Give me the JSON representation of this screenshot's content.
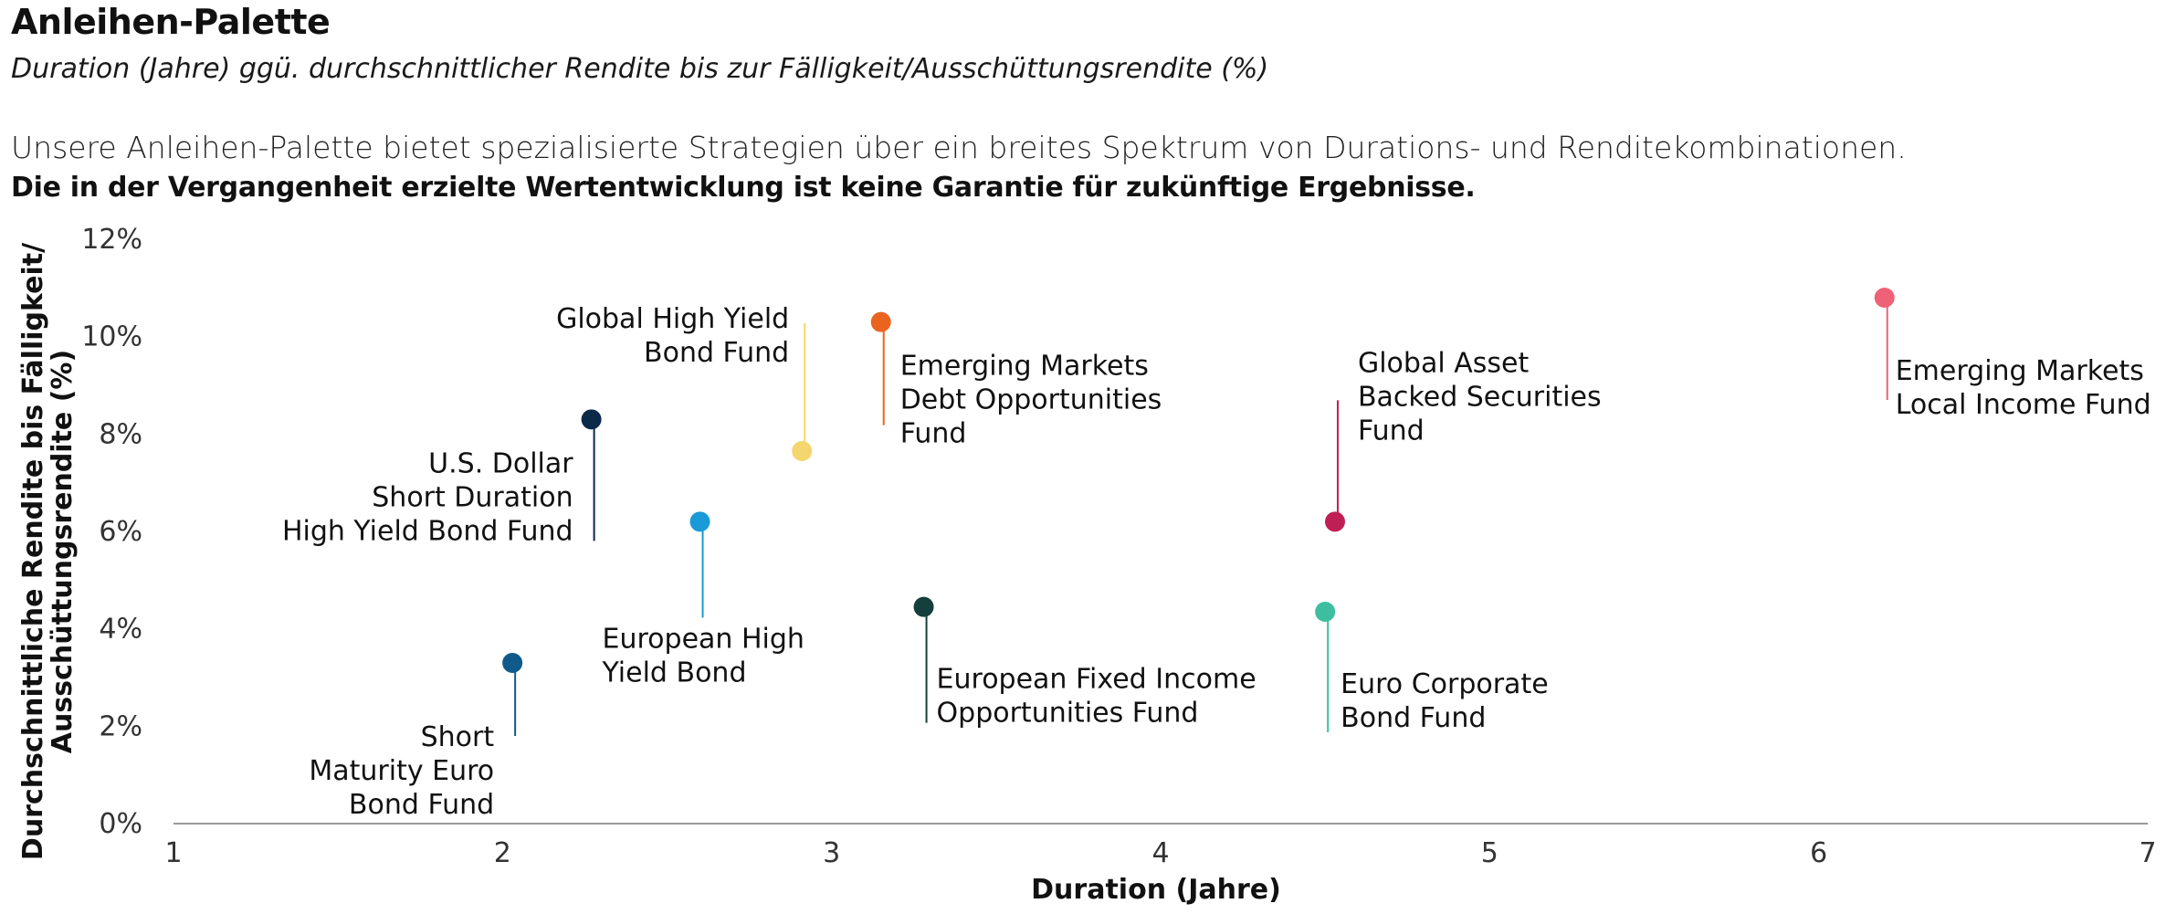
{
  "header": {
    "title": "Anleihen-Palette",
    "subtitle": "Duration (Jahre) ggü. durchschnittlicher Rendite bis zur Fälligkeit/Ausschüttungsrendite (%)",
    "intro": "Unsere Anleihen-Palette bietet spezialisierte Strategien über ein breites Spektrum von Durations- und Renditekombinationen.",
    "disclaimer": "Die in der Vergangenheit erzielte Wertentwicklung ist keine Garantie für zukünftige Ergebnisse."
  },
  "chart_data": {
    "type": "scatter",
    "xlabel": "Duration (Jahre)",
    "ylabel": [
      "Durchschnittliche Rendite bis Fälligkeit/",
      "Ausschüttungsrendite (%)"
    ],
    "xlim": [
      1,
      7
    ],
    "ylim": [
      0,
      12
    ],
    "xticks": [
      "1",
      "2",
      "3",
      "4",
      "5",
      "6",
      "7"
    ],
    "yticks": [
      "0%",
      "2%",
      "4%",
      "6%",
      "8%",
      "10%",
      "12%"
    ],
    "grid": false,
    "series": [
      {
        "label": [
          "Short",
          "Maturity Euro",
          "Bond Fund"
        ],
        "x": 2.03,
        "y": 3.3,
        "color": "#0e5a8a"
      },
      {
        "label": [
          "U.S. Dollar",
          "Short Duration",
          "High Yield Bond Fund"
        ],
        "x": 2.27,
        "y": 8.3,
        "color": "#0b2a4a"
      },
      {
        "label": [
          "European High",
          "Yield Bond"
        ],
        "x": 2.6,
        "y": 6.2,
        "color": "#1a9ad6"
      },
      {
        "label": [
          "Global High Yield",
          "Bond Fund"
        ],
        "x": 2.91,
        "y": 7.65,
        "color": "#f5d56e"
      },
      {
        "label": [
          "Emerging Markets",
          "Debt Opportunities",
          "Fund"
        ],
        "x": 3.15,
        "y": 10.3,
        "color": "#ea6420"
      },
      {
        "label": [
          "European Fixed Income",
          "Opportunities Fund"
        ],
        "x": 3.28,
        "y": 4.45,
        "color": "#153f3c"
      },
      {
        "label": [
          "Euro Corporate",
          "Bond Fund"
        ],
        "x": 4.5,
        "y": 4.35,
        "color": "#3dbf9f"
      },
      {
        "label": [
          "Global Asset",
          "Backed Securities",
          "Fund"
        ],
        "x": 4.53,
        "y": 6.2,
        "color": "#c01f56"
      },
      {
        "label": [
          "Emerging Markets",
          "Local Income Fund"
        ],
        "x": 6.2,
        "y": 10.8,
        "color": "#ef6177"
      }
    ]
  }
}
